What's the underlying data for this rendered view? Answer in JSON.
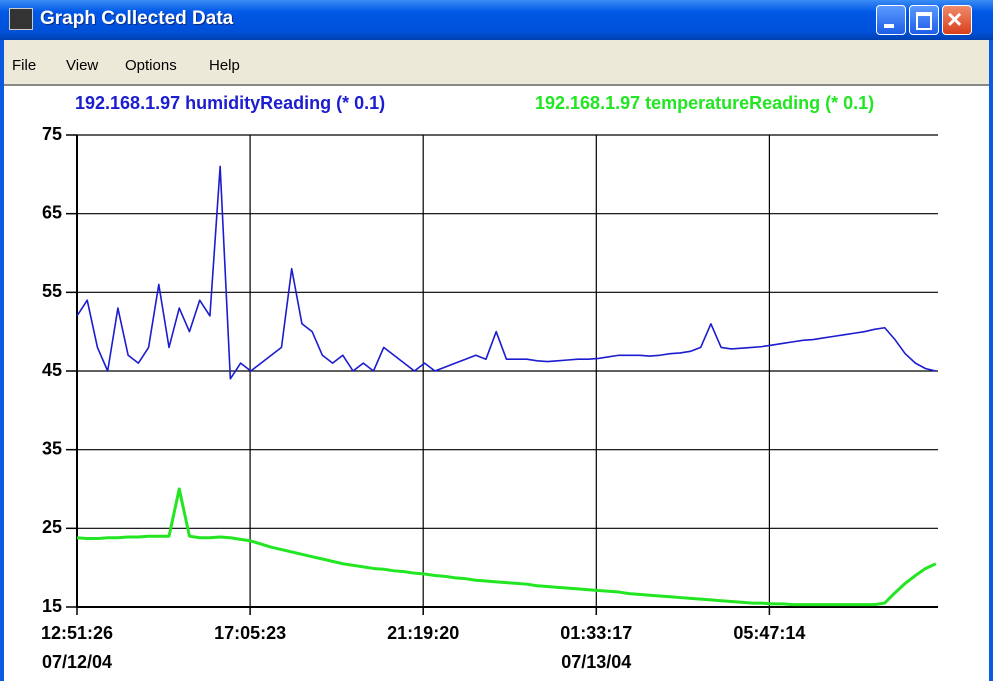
{
  "window": {
    "title": "Graph Collected Data",
    "menu": [
      "File",
      "View",
      "Options",
      "Help"
    ]
  },
  "chart_data": {
    "type": "line",
    "x": [
      "2004-07-12T12:51:26",
      "2004-07-12T13:06:26",
      "2004-07-12T13:21:26",
      "2004-07-12T13:36:26",
      "2004-07-12T13:51:26",
      "2004-07-12T14:06:26",
      "2004-07-12T14:21:26",
      "2004-07-12T14:36:26",
      "2004-07-12T14:51:26",
      "2004-07-12T15:06:26",
      "2004-07-12T15:21:26",
      "2004-07-12T15:36:26",
      "2004-07-12T15:51:26",
      "2004-07-12T16:06:26",
      "2004-07-12T16:21:26",
      "2004-07-12T16:36:26",
      "2004-07-12T16:51:26",
      "2004-07-12T17:06:26",
      "2004-07-12T17:21:26",
      "2004-07-12T17:36:26",
      "2004-07-12T17:51:26",
      "2004-07-12T18:06:26",
      "2004-07-12T18:21:26",
      "2004-07-12T18:36:26",
      "2004-07-12T18:51:26",
      "2004-07-12T19:06:26",
      "2004-07-12T19:21:26",
      "2004-07-12T19:36:26",
      "2004-07-12T19:51:26",
      "2004-07-12T20:06:26",
      "2004-07-12T20:21:26",
      "2004-07-12T20:36:26",
      "2004-07-12T20:51:26",
      "2004-07-12T21:06:26",
      "2004-07-12T21:21:26",
      "2004-07-12T21:36:26",
      "2004-07-12T21:51:26",
      "2004-07-12T22:06:26",
      "2004-07-12T22:21:26",
      "2004-07-12T22:36:26",
      "2004-07-12T22:51:26",
      "2004-07-12T23:06:26",
      "2004-07-12T23:21:26",
      "2004-07-12T23:36:26",
      "2004-07-12T23:51:26",
      "2004-07-13T00:06:26",
      "2004-07-13T00:21:26",
      "2004-07-13T00:36:26",
      "2004-07-13T00:51:26",
      "2004-07-13T01:06:26",
      "2004-07-13T01:21:26",
      "2004-07-13T01:36:26",
      "2004-07-13T01:51:26",
      "2004-07-13T02:06:26",
      "2004-07-13T02:21:26",
      "2004-07-13T02:36:26",
      "2004-07-13T02:51:26",
      "2004-07-13T03:06:26",
      "2004-07-13T03:21:26",
      "2004-07-13T03:36:26",
      "2004-07-13T03:51:26",
      "2004-07-13T04:06:26",
      "2004-07-13T04:21:26",
      "2004-07-13T04:36:26",
      "2004-07-13T04:51:26",
      "2004-07-13T05:06:26",
      "2004-07-13T05:21:26",
      "2004-07-13T05:36:26",
      "2004-07-13T05:51:26",
      "2004-07-13T06:06:26",
      "2004-07-13T06:21:26",
      "2004-07-13T06:36:26",
      "2004-07-13T06:51:26",
      "2004-07-13T07:06:26",
      "2004-07-13T07:21:26",
      "2004-07-13T07:36:26",
      "2004-07-13T07:51:26",
      "2004-07-13T08:06:26",
      "2004-07-13T08:21:26",
      "2004-07-13T08:36:26",
      "2004-07-13T08:51:26",
      "2004-07-13T09:06:26",
      "2004-07-13T09:21:26",
      "2004-07-13T09:36:26",
      "2004-07-13T09:51:26"
    ],
    "series": [
      {
        "name": "192.168.1.97 humidityReading (* 0.1)",
        "color": "#1c1cd0",
        "values": [
          52,
          54,
          48,
          45,
          53,
          47,
          46,
          48,
          56,
          48,
          53,
          50,
          54,
          52,
          71,
          44,
          46,
          45,
          46,
          47,
          48,
          58,
          51,
          50,
          47,
          46,
          47,
          45,
          46,
          45,
          48,
          47,
          46,
          45,
          46,
          45,
          45.5,
          46,
          46.5,
          47,
          46.5,
          50,
          46.5,
          46.5,
          46.5,
          46.3,
          46.2,
          46.3,
          46.4,
          46.5,
          46.5,
          46.6,
          46.8,
          47,
          47,
          47,
          46.9,
          47,
          47.2,
          47.3,
          47.5,
          48,
          51,
          48,
          47.8,
          47.9,
          48,
          48.1,
          48.3,
          48.5,
          48.7,
          48.9,
          49,
          49.2,
          49.4,
          49.6,
          49.8,
          50,
          50.3,
          50.5,
          49,
          47.2,
          46,
          45.3,
          45
        ]
      },
      {
        "name": "192.168.1.97 temperatureReading (* 0.1)",
        "color": "#22e622",
        "values": [
          23.8,
          23.7,
          23.7,
          23.8,
          23.8,
          23.9,
          23.9,
          24,
          24,
          24,
          30,
          24,
          23.8,
          23.8,
          23.9,
          23.8,
          23.6,
          23.4,
          23,
          22.6,
          22.3,
          22,
          21.7,
          21.4,
          21.1,
          20.8,
          20.5,
          20.3,
          20.1,
          19.9,
          19.8,
          19.6,
          19.5,
          19.3,
          19.2,
          19,
          18.9,
          18.7,
          18.6,
          18.4,
          18.3,
          18.2,
          18.1,
          18,
          17.9,
          17.7,
          17.6,
          17.5,
          17.4,
          17.3,
          17.2,
          17.1,
          17,
          16.9,
          16.7,
          16.6,
          16.5,
          16.4,
          16.3,
          16.2,
          16.1,
          16,
          15.9,
          15.8,
          15.7,
          15.6,
          15.5,
          15.5,
          15.4,
          15.4,
          15.3,
          15.3,
          15.3,
          15.3,
          15.3,
          15.3,
          15.3,
          15.3,
          15.3,
          15.5,
          16.8,
          18,
          19,
          19.9,
          20.5
        ]
      }
    ],
    "xlim": [
      "2004-07-12T12:51:26",
      "2004-07-13T09:54:36"
    ],
    "xticks": [
      {
        "value": "2004-07-12T12:51:26",
        "label": "12:51:26",
        "date": "07/12/04"
      },
      {
        "value": "2004-07-12T17:05:23",
        "label": "17:05:23"
      },
      {
        "value": "2004-07-12T21:19:20",
        "label": "21:19:20"
      },
      {
        "value": "2004-07-13T01:33:17",
        "label": "01:33:17",
        "date": "07/13/04"
      },
      {
        "value": "2004-07-13T05:47:14",
        "label": "05:47:14"
      }
    ],
    "ylim": [
      15,
      75
    ],
    "yticks": [
      15,
      25,
      35,
      45,
      55,
      65,
      75
    ],
    "grid": true
  }
}
